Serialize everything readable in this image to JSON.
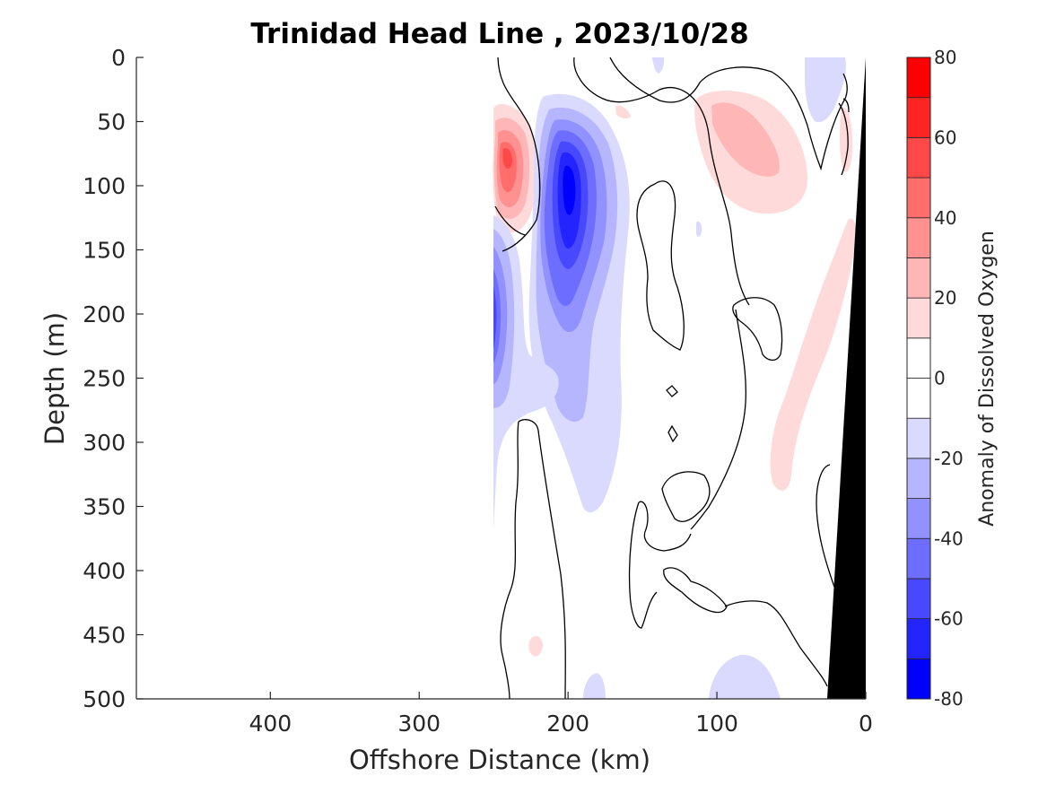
{
  "chart_data": {
    "type": "heatmap",
    "title": "Trinidad Head Line , 2023/10/28",
    "xlabel": "Offshore Distance (km)",
    "ylabel": "Depth (m)",
    "xlim": [
      490,
      0
    ],
    "ylim": [
      0,
      500
    ],
    "xticks": [
      "400",
      "300",
      "200",
      "100",
      "0"
    ],
    "xtick_values": [
      400,
      300,
      200,
      100,
      0
    ],
    "yticks": [
      "0",
      "50",
      "100",
      "150",
      "200",
      "250",
      "300",
      "350",
      "400",
      "450",
      "500"
    ],
    "ytick_values": [
      0,
      50,
      100,
      150,
      200,
      250,
      300,
      350,
      400,
      450,
      500
    ],
    "colorbar": {
      "label": "Anomaly of Dissolved Oxygen",
      "range": [
        -80,
        80
      ],
      "ticks": [
        "80",
        "60",
        "40",
        "20",
        "0",
        "-20",
        "-40",
        "-60",
        "-80"
      ],
      "tick_values": [
        80,
        60,
        40,
        20,
        0,
        -20,
        -40,
        -60,
        -80
      ],
      "colors": [
        "#0000ff",
        "#2424ff",
        "#4848ff",
        "#6d6dff",
        "#9191ff",
        "#b6b6ff",
        "#dadaff",
        "#ffffff",
        "#ffffff",
        "#ffdada",
        "#ffb6b6",
        "#ff9191",
        "#ff6d6d",
        "#ff4848",
        "#ff2424",
        "#ff0000"
      ]
    },
    "features": [
      {
        "name": "positive anomaly near-surface, ~240 km",
        "center_km": 240,
        "center_depth_m": 85,
        "peak_value": 55
      },
      {
        "name": "negative anomaly core, ~200 km",
        "center_km": 200,
        "center_depth_m": 110,
        "peak_value": -75
      },
      {
        "name": "negative anomaly at offshore edge, ~250 km",
        "center_km": 248,
        "center_depth_m": 210,
        "peak_value": -45
      },
      {
        "name": "positive anomaly, ~75 km",
        "center_km": 75,
        "center_depth_m": 80,
        "peak_value": 30
      },
      {
        "name": "positive anomaly band over slope, ~40 km",
        "center_km": 45,
        "center_depth_m": 240,
        "peak_value": 15
      }
    ],
    "bathymetry_fill": "#000000"
  }
}
